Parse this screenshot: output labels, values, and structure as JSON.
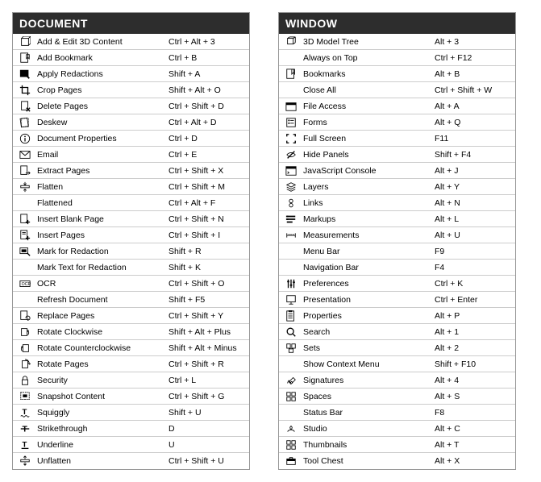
{
  "colors": {
    "header_bg": "#2d2d2d",
    "header_text": "#ffffff",
    "border": "#999999",
    "row_border": "#cccccc",
    "text": "#000000"
  },
  "panels": [
    {
      "title": "DOCUMENT",
      "rows": [
        {
          "icon": "3d-content-icon",
          "label": "Add & Edit 3D Content",
          "shortcut": "Ctrl + Alt + 3"
        },
        {
          "icon": "bookmark-add-icon",
          "label": "Add Bookmark",
          "shortcut": "Ctrl + B"
        },
        {
          "icon": "redaction-apply-icon",
          "label": "Apply Redactions",
          "shortcut": "Shift + A"
        },
        {
          "icon": "crop-icon",
          "label": "Crop Pages",
          "shortcut": "Shift + Alt + O"
        },
        {
          "icon": "delete-page-icon",
          "label": "Delete Pages",
          "shortcut": "Ctrl + Shift + D"
        },
        {
          "icon": "deskew-icon",
          "label": "Deskew",
          "shortcut": "Ctrl + Alt + D"
        },
        {
          "icon": "info-icon",
          "label": "Document Properties",
          "shortcut": "Ctrl + D"
        },
        {
          "icon": "email-icon",
          "label": "Email",
          "shortcut": "Ctrl + E"
        },
        {
          "icon": "extract-page-icon",
          "label": "Extract Pages",
          "shortcut": "Ctrl + Shift + X"
        },
        {
          "icon": "flatten-icon",
          "label": "Flatten",
          "shortcut": "Ctrl + Shift + M"
        },
        {
          "icon": "",
          "label": "Flattened",
          "shortcut": "Ctrl + Alt + F"
        },
        {
          "icon": "insert-blank-icon",
          "label": "Insert Blank Page",
          "shortcut": "Ctrl + Shift + N"
        },
        {
          "icon": "insert-page-icon",
          "label": "Insert Pages",
          "shortcut": "Ctrl + Shift + I"
        },
        {
          "icon": "mark-redaction-icon",
          "label": "Mark for Redaction",
          "shortcut": "Shift + R"
        },
        {
          "icon": "",
          "label": "Mark Text for Redaction",
          "shortcut": "Shift + K"
        },
        {
          "icon": "ocr-icon",
          "label": "OCR",
          "shortcut": "Ctrl + Shift + O"
        },
        {
          "icon": "",
          "label": "Refresh Document",
          "shortcut": "Shift + F5"
        },
        {
          "icon": "replace-page-icon",
          "label": "Replace Pages",
          "shortcut": "Ctrl + Shift + Y"
        },
        {
          "icon": "rotate-cw-icon",
          "label": "Rotate Clockwise",
          "shortcut": "Shift + Alt + Plus"
        },
        {
          "icon": "rotate-ccw-icon",
          "label": "Rotate Counterclockwise",
          "shortcut": "Shift + Alt + Minus"
        },
        {
          "icon": "rotate-page-icon",
          "label": "Rotate Pages",
          "shortcut": "Ctrl + Shift + R"
        },
        {
          "icon": "lock-icon",
          "label": "Security",
          "shortcut": "Ctrl + L"
        },
        {
          "icon": "snapshot-icon",
          "label": "Snapshot Content",
          "shortcut": "Ctrl + Shift + G"
        },
        {
          "icon": "squiggly-icon",
          "label": "Squiggly",
          "shortcut": "Shift + U"
        },
        {
          "icon": "strikethrough-icon",
          "label": "Strikethrough",
          "shortcut": "D"
        },
        {
          "icon": "underline-icon",
          "label": "Underline",
          "shortcut": "U"
        },
        {
          "icon": "unflatten-icon",
          "label": "Unflatten",
          "shortcut": "Ctrl + Shift + U"
        }
      ]
    },
    {
      "title": "WINDOW",
      "rows": [
        {
          "icon": "3d-tree-icon",
          "label": "3D Model Tree",
          "shortcut": "Alt + 3"
        },
        {
          "icon": "",
          "label": "Always on Top",
          "shortcut": "Ctrl + F12"
        },
        {
          "icon": "bookmarks-icon",
          "label": "Bookmarks",
          "shortcut": "Alt + B"
        },
        {
          "icon": "",
          "label": "Close All",
          "shortcut": "Ctrl + Shift + W"
        },
        {
          "icon": "file-access-icon",
          "label": "File Access",
          "shortcut": "Alt + A"
        },
        {
          "icon": "forms-icon",
          "label": "Forms",
          "shortcut": "Alt + Q"
        },
        {
          "icon": "fullscreen-icon",
          "label": "Full Screen",
          "shortcut": "F11"
        },
        {
          "icon": "hide-panels-icon",
          "label": "Hide Panels",
          "shortcut": "Shift + F4"
        },
        {
          "icon": "js-console-icon",
          "label": "JavaScript Console",
          "shortcut": "Alt + J"
        },
        {
          "icon": "layers-icon",
          "label": "Layers",
          "shortcut": "Alt + Y"
        },
        {
          "icon": "links-icon",
          "label": "Links",
          "shortcut": "Alt + N"
        },
        {
          "icon": "markups-icon",
          "label": "Markups",
          "shortcut": "Alt + L"
        },
        {
          "icon": "measurements-icon",
          "label": "Measurements",
          "shortcut": "Alt + U"
        },
        {
          "icon": "",
          "label": "Menu Bar",
          "shortcut": "F9"
        },
        {
          "icon": "",
          "label": "Navigation Bar",
          "shortcut": "F4"
        },
        {
          "icon": "preferences-icon",
          "label": "Preferences",
          "shortcut": "Ctrl + K"
        },
        {
          "icon": "presentation-icon",
          "label": "Presentation",
          "shortcut": "Ctrl + Enter"
        },
        {
          "icon": "properties-icon",
          "label": "Properties",
          "shortcut": "Alt + P"
        },
        {
          "icon": "search-icon",
          "label": "Search",
          "shortcut": "Alt + 1"
        },
        {
          "icon": "sets-icon",
          "label": "Sets",
          "shortcut": "Alt + 2"
        },
        {
          "icon": "",
          "label": "Show Context Menu",
          "shortcut": "Shift + F10"
        },
        {
          "icon": "signatures-icon",
          "label": "Signatures",
          "shortcut": "Alt + 4"
        },
        {
          "icon": "spaces-icon",
          "label": "Spaces",
          "shortcut": "Alt + S"
        },
        {
          "icon": "",
          "label": "Status Bar",
          "shortcut": "F8"
        },
        {
          "icon": "studio-icon",
          "label": "Studio",
          "shortcut": "Alt + C"
        },
        {
          "icon": "thumbnails-icon",
          "label": "Thumbnails",
          "shortcut": "Alt + T"
        },
        {
          "icon": "toolchest-icon",
          "label": "Tool Chest",
          "shortcut": "Alt + X"
        }
      ]
    }
  ]
}
